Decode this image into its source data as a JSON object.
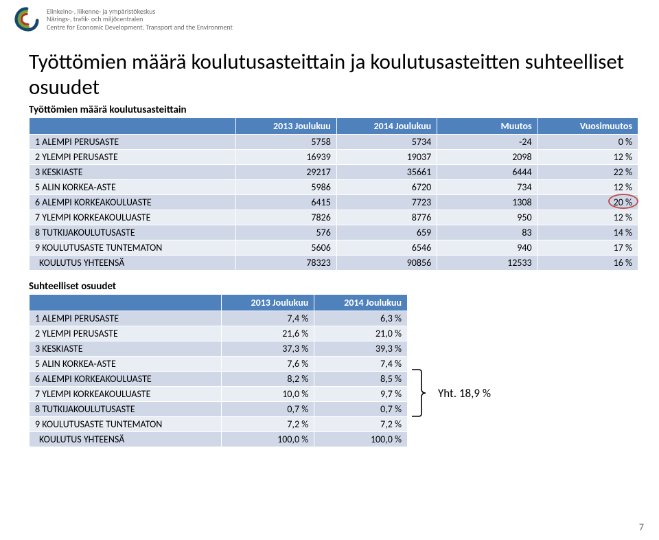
{
  "org": {
    "fi": "Elinkeino-, liikenne- ja ympäristökeskus",
    "sv": "Närings-, trafik- och miljöcentralen",
    "en": "Centre for Economic Development, Transport and the Environment"
  },
  "title": "Työttömien määrä koulutusasteittain ja koulutusasteitten suhteelliset osuudet",
  "table1": {
    "subtitle": "Työttömien määrä koulutusasteittain",
    "headers": [
      "",
      "2013 Joulukuu",
      "2014 Joulukuu",
      "Muutos",
      "Vuosimuutos"
    ],
    "rows": [
      {
        "label": "1 ALEMPI PERUSASTE",
        "v": [
          "5758",
          "5734",
          "-24",
          "0 %"
        ]
      },
      {
        "label": "2 YLEMPI PERUSASTE",
        "v": [
          "16939",
          "19037",
          "2098",
          "12 %"
        ]
      },
      {
        "label": "3 KESKIASTE",
        "v": [
          "29217",
          "35661",
          "6444",
          "22 %"
        ]
      },
      {
        "label": "5 ALIN KORKEA-ASTE",
        "v": [
          "5986",
          "6720",
          "734",
          "12 %"
        ]
      },
      {
        "label": "6 ALEMPI KORKEAKOULUASTE",
        "v": [
          "6415",
          "7723",
          "1308",
          "20 %"
        ],
        "circle": true
      },
      {
        "label": "7 YLEMPI KORKEAKOULUASTE",
        "v": [
          "7826",
          "8776",
          "950",
          "12 %"
        ]
      },
      {
        "label": "8 TUTKIJAKOULUTUSASTE",
        "v": [
          "576",
          "659",
          "83",
          "14 %"
        ]
      },
      {
        "label": "9 KOULUTUSASTE TUNTEMATON",
        "v": [
          "5606",
          "6546",
          "940",
          "17 %"
        ]
      },
      {
        "label": "KOULUTUS YHTEENSÄ",
        "v": [
          "78323",
          "90856",
          "12533",
          "16 %"
        ],
        "total": true
      }
    ]
  },
  "table2": {
    "subtitle": "Suhteelliset osuudet",
    "headers": [
      "",
      "2013 Joulukuu",
      "2014 Joulukuu"
    ],
    "rows": [
      {
        "label": "1 ALEMPI PERUSASTE",
        "v": [
          "7,4 %",
          "6,3 %"
        ]
      },
      {
        "label": "2 YLEMPI PERUSASTE",
        "v": [
          "21,6 %",
          "21,0 %"
        ]
      },
      {
        "label": "3 KESKIASTE",
        "v": [
          "37,3 %",
          "39,3 %"
        ]
      },
      {
        "label": "5 ALIN KORKEA-ASTE",
        "v": [
          "7,6 %",
          "7,4 %"
        ]
      },
      {
        "label": "6 ALEMPI KORKEAKOULUASTE",
        "v": [
          "8,2 %",
          "8,5 %"
        ]
      },
      {
        "label": "7 YLEMPI KORKEAKOULUASTE",
        "v": [
          "10,0 %",
          "9,7 %"
        ]
      },
      {
        "label": "8 TUTKIJAKOULUTUSASTE",
        "v": [
          "0,7 %",
          "0,7 %"
        ]
      },
      {
        "label": "9 KOULUTUSASTE TUNTEMATON",
        "v": [
          "7,2 %",
          "7,2 %"
        ]
      },
      {
        "label": "KOULUTUS YHTEENSÄ",
        "v": [
          "100,0 %",
          "100,0 %"
        ],
        "total": true
      }
    ]
  },
  "yht": "Yht. 18,9 %",
  "pagefoot": "7",
  "colors": {
    "header_bg": "#4f81bd",
    "row_odd": "#d0d8e8",
    "row_even": "#e9edf4",
    "circle": "#c0504d",
    "bracket": "#000000"
  }
}
